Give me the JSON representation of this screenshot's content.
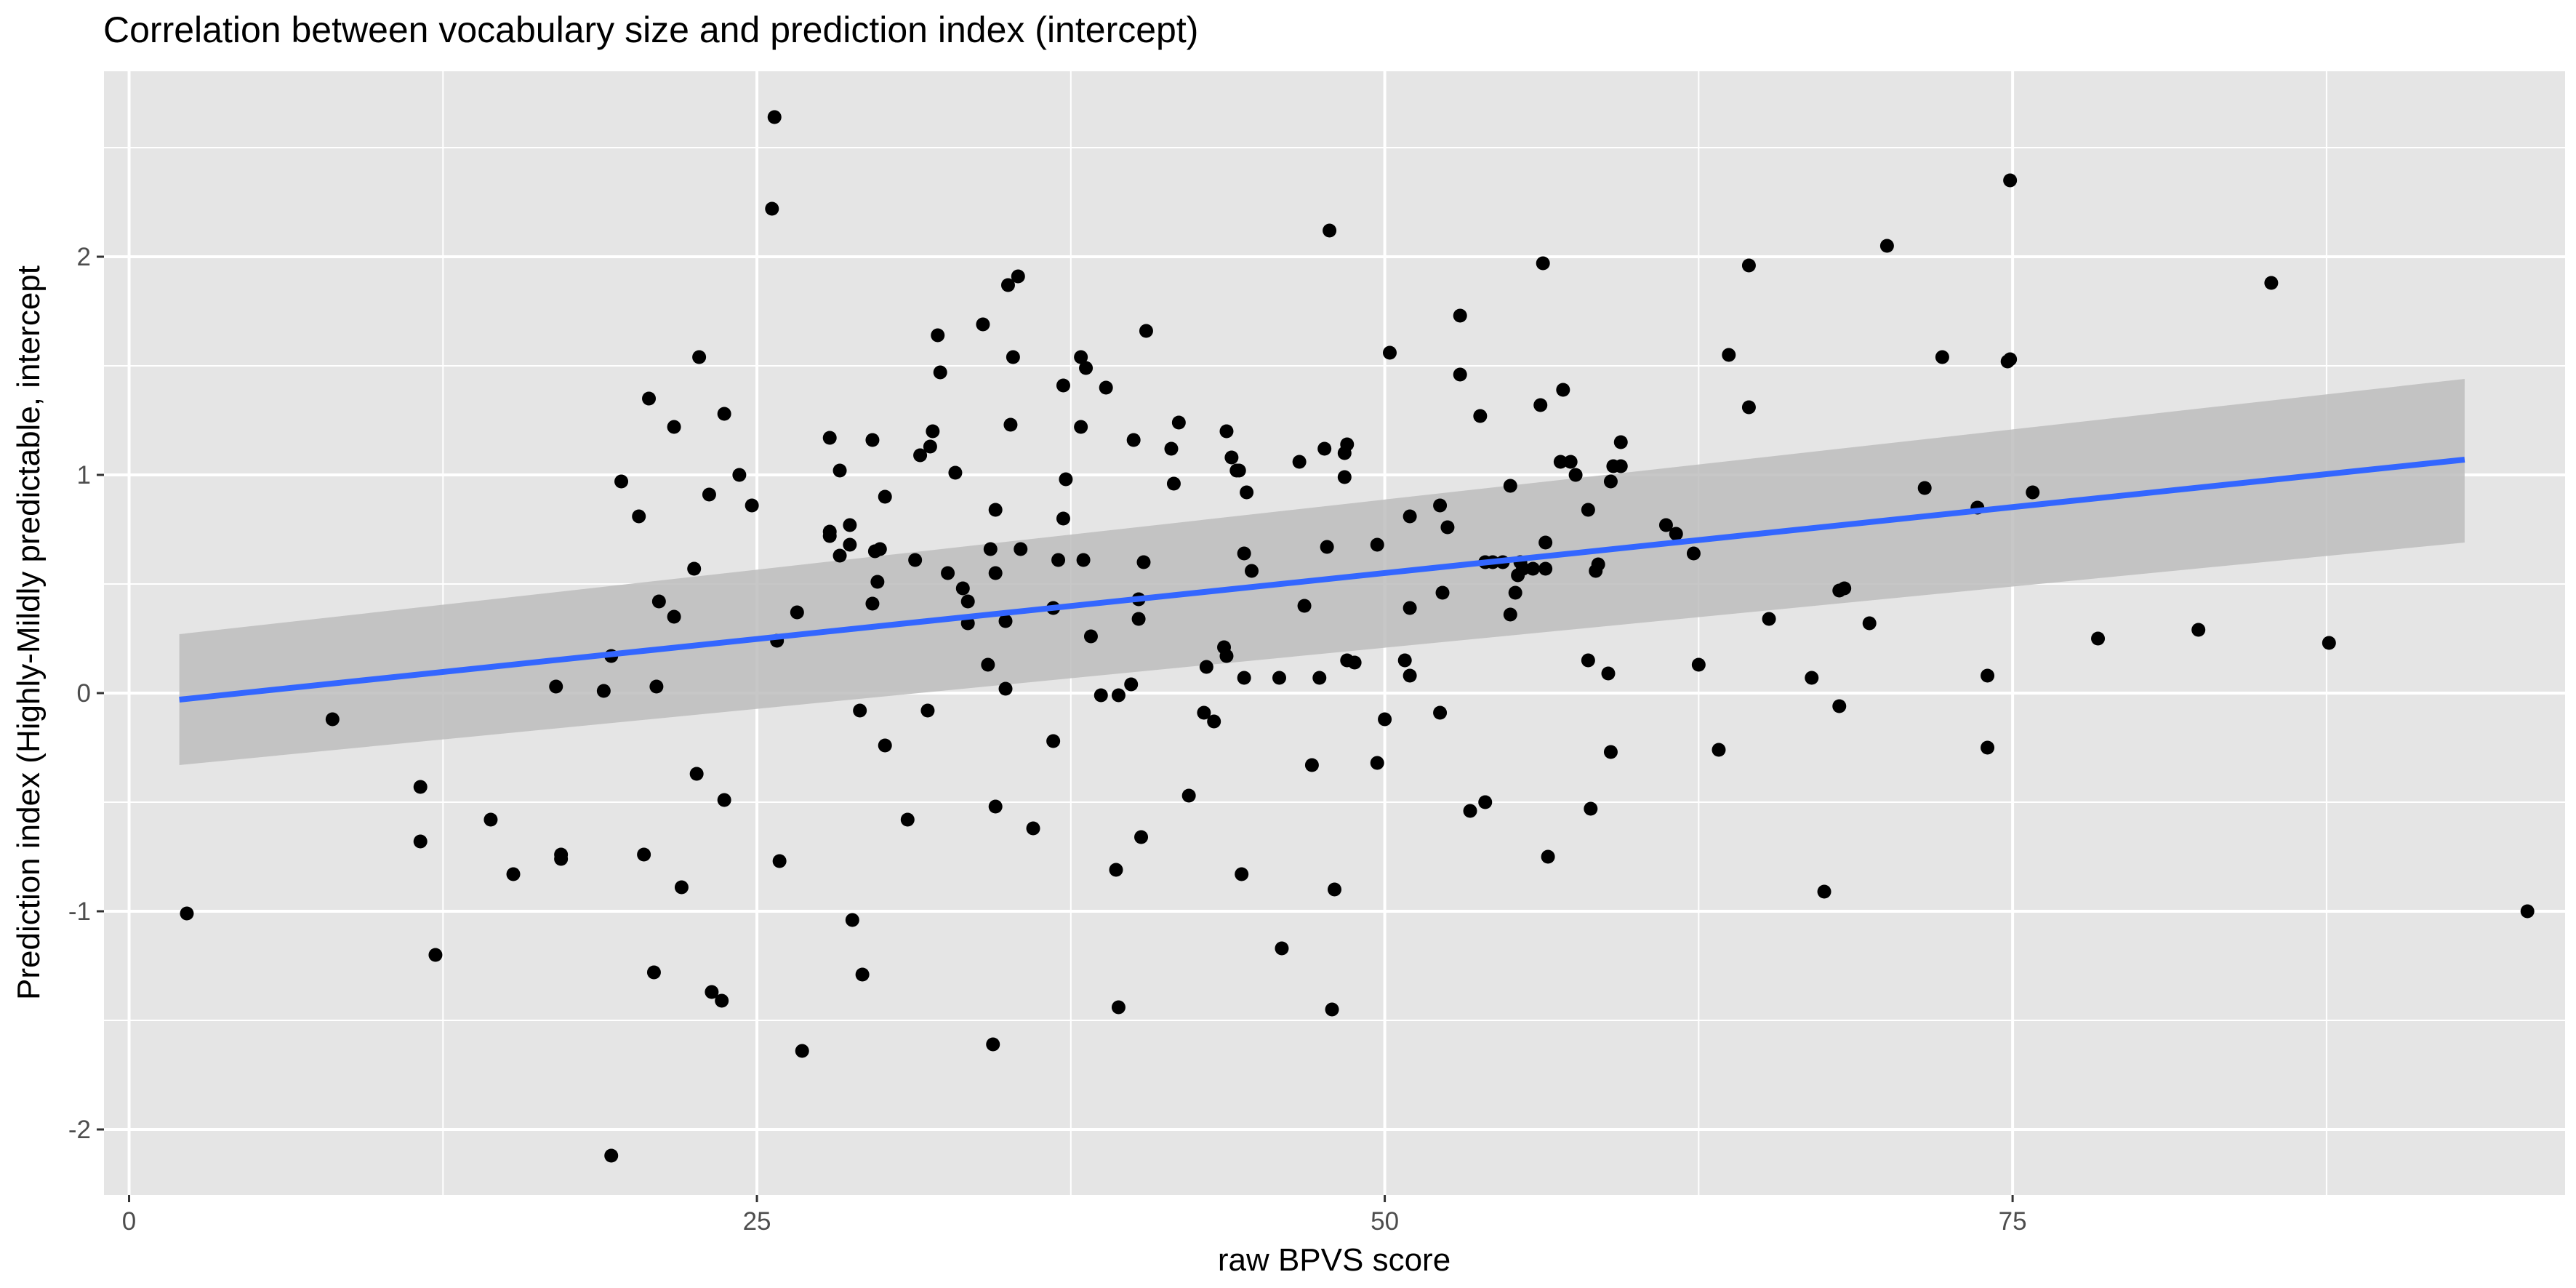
{
  "chart_data": {
    "type": "scatter",
    "title": "Correlation between vocabulary size and prediction index (intercept)",
    "xlabel": "raw BPVS score",
    "ylabel": "Prediction index (Highly-Mildly predictable, intercept",
    "xlim": [
      -1,
      97
    ],
    "ylim": [
      -2.3,
      2.85
    ],
    "x_ticks": [
      0,
      25,
      50,
      75
    ],
    "x_tick_labels": [
      "0",
      "25",
      "50",
      "75"
    ],
    "y_ticks": [
      -2,
      -1,
      0,
      1,
      2
    ],
    "y_tick_labels": [
      "-2",
      "-1",
      "0",
      "1",
      "2"
    ],
    "grid": true,
    "legend": "none",
    "colors": {
      "panel": "#e5e5e5",
      "grid": "#ffffff",
      "points": "#000000",
      "fit_line": "#3366ff",
      "confidence_band": "#bdbdbd"
    },
    "regression": {
      "x_range": [
        2,
        93
      ],
      "y_at_x_min": -0.03,
      "y_at_x_max": 1.07,
      "band_lower": [
        -0.33,
        0.69
      ],
      "band_upper": [
        0.27,
        1.44
      ]
    },
    "series": [
      {
        "points": [
          [
            2.3,
            -1.01
          ],
          [
            8.1,
            -0.12
          ],
          [
            11.6,
            -0.43
          ],
          [
            11.6,
            -0.68
          ],
          [
            12.2,
            -1.2
          ],
          [
            14.4,
            -0.58
          ],
          [
            15.3,
            -0.83
          ],
          [
            17.0,
            0.03
          ],
          [
            17.2,
            -0.74
          ],
          [
            17.2,
            -0.76
          ],
          [
            18.9,
            0.01
          ],
          [
            19.2,
            0.17
          ],
          [
            19.2,
            -2.12
          ],
          [
            19.6,
            0.97
          ],
          [
            20.3,
            0.81
          ],
          [
            20.5,
            -0.74
          ],
          [
            20.7,
            1.35
          ],
          [
            20.9,
            -1.28
          ],
          [
            21.0,
            0.03
          ],
          [
            21.1,
            0.42
          ],
          [
            21.7,
            0.35
          ],
          [
            21.7,
            1.22
          ],
          [
            22.0,
            -0.89
          ],
          [
            22.5,
            0.57
          ],
          [
            22.6,
            -0.37
          ],
          [
            22.7,
            1.54
          ],
          [
            23.1,
            0.91
          ],
          [
            23.2,
            -1.37
          ],
          [
            23.6,
            -1.41
          ],
          [
            23.7,
            1.28
          ],
          [
            23.7,
            -0.49
          ],
          [
            24.3,
            1.0
          ],
          [
            24.8,
            0.86
          ],
          [
            25.6,
            2.22
          ],
          [
            25.7,
            2.64
          ],
          [
            25.8,
            0.24
          ],
          [
            25.9,
            -0.77
          ],
          [
            26.6,
            0.37
          ],
          [
            26.8,
            -1.64
          ],
          [
            27.9,
            0.72
          ],
          [
            27.9,
            1.17
          ],
          [
            27.9,
            0.74
          ],
          [
            28.3,
            1.02
          ],
          [
            28.3,
            0.63
          ],
          [
            28.7,
            0.77
          ],
          [
            28.7,
            0.68
          ],
          [
            28.8,
            -1.04
          ],
          [
            29.1,
            -0.08
          ],
          [
            29.2,
            -1.29
          ],
          [
            29.6,
            0.41
          ],
          [
            29.6,
            1.16
          ],
          [
            29.7,
            0.65
          ],
          [
            29.8,
            0.51
          ],
          [
            29.9,
            0.66
          ],
          [
            30.1,
            0.9
          ],
          [
            30.1,
            -0.24
          ],
          [
            31.0,
            -0.58
          ],
          [
            31.3,
            0.61
          ],
          [
            31.5,
            1.09
          ],
          [
            31.8,
            -0.08
          ],
          [
            31.9,
            1.13
          ],
          [
            32.0,
            1.2
          ],
          [
            32.2,
            1.64
          ],
          [
            32.3,
            1.47
          ],
          [
            32.6,
            0.55
          ],
          [
            32.9,
            1.01
          ],
          [
            33.2,
            0.48
          ],
          [
            33.4,
            0.42
          ],
          [
            33.4,
            0.32
          ],
          [
            34.0,
            1.69
          ],
          [
            34.2,
            0.13
          ],
          [
            34.3,
            0.66
          ],
          [
            34.5,
            0.84
          ],
          [
            34.5,
            -0.52
          ],
          [
            34.5,
            0.55
          ],
          [
            34.4,
            -1.61
          ],
          [
            34.9,
            0.33
          ],
          [
            34.9,
            0.02
          ],
          [
            35.0,
            1.87
          ],
          [
            35.1,
            1.23
          ],
          [
            35.2,
            1.54
          ],
          [
            35.4,
            1.91
          ],
          [
            35.5,
            0.66
          ],
          [
            36.0,
            -0.62
          ],
          [
            36.8,
            0.39
          ],
          [
            36.8,
            -0.22
          ],
          [
            37.0,
            0.61
          ],
          [
            37.2,
            0.8
          ],
          [
            37.2,
            1.41
          ],
          [
            37.3,
            0.98
          ],
          [
            37.9,
            1.22
          ],
          [
            37.9,
            1.54
          ],
          [
            38.0,
            0.61
          ],
          [
            38.1,
            1.49
          ],
          [
            38.3,
            0.26
          ],
          [
            38.7,
            -0.01
          ],
          [
            38.9,
            1.4
          ],
          [
            39.3,
            -0.81
          ],
          [
            39.4,
            -0.01
          ],
          [
            39.4,
            -1.44
          ],
          [
            39.9,
            0.04
          ],
          [
            40.0,
            1.16
          ],
          [
            40.2,
            0.34
          ],
          [
            40.2,
            0.43
          ],
          [
            40.3,
            -0.66
          ],
          [
            40.4,
            0.6
          ],
          [
            40.5,
            1.66
          ],
          [
            41.5,
            1.12
          ],
          [
            41.6,
            0.96
          ],
          [
            41.8,
            1.24
          ],
          [
            42.2,
            -0.47
          ],
          [
            42.8,
            -0.09
          ],
          [
            42.9,
            0.12
          ],
          [
            43.2,
            -0.13
          ],
          [
            43.6,
            0.21
          ],
          [
            43.7,
            0.17
          ],
          [
            43.7,
            1.2
          ],
          [
            43.9,
            1.08
          ],
          [
            44.1,
            1.02
          ],
          [
            44.2,
            1.02
          ],
          [
            44.3,
            -0.83
          ],
          [
            44.4,
            0.64
          ],
          [
            44.4,
            0.07
          ],
          [
            44.5,
            0.92
          ],
          [
            44.7,
            0.56
          ],
          [
            45.8,
            0.07
          ],
          [
            45.9,
            -1.17
          ],
          [
            46.6,
            1.06
          ],
          [
            46.8,
            0.4
          ],
          [
            47.1,
            -0.33
          ],
          [
            47.4,
            0.07
          ],
          [
            47.6,
            1.12
          ],
          [
            47.7,
            0.67
          ],
          [
            47.9,
            -1.45
          ],
          [
            47.8,
            2.12
          ],
          [
            48.0,
            -0.9
          ],
          [
            48.4,
            1.1
          ],
          [
            48.4,
            0.99
          ],
          [
            48.5,
            1.14
          ],
          [
            48.5,
            0.15
          ],
          [
            48.8,
            0.14
          ],
          [
            49.7,
            0.68
          ],
          [
            49.7,
            -0.32
          ],
          [
            50.0,
            -0.12
          ],
          [
            50.2,
            1.56
          ],
          [
            50.8,
            0.15
          ],
          [
            51.0,
            0.08
          ],
          [
            51.0,
            0.81
          ],
          [
            51.0,
            0.39
          ],
          [
            52.2,
            -0.09
          ],
          [
            52.2,
            0.86
          ],
          [
            52.3,
            0.46
          ],
          [
            52.5,
            0.76
          ],
          [
            53.0,
            1.73
          ],
          [
            53.0,
            1.46
          ],
          [
            53.4,
            -0.54
          ],
          [
            53.8,
            1.27
          ],
          [
            54.0,
            0.6
          ],
          [
            54.0,
            -0.5
          ],
          [
            54.3,
            0.6
          ],
          [
            54.7,
            0.6
          ],
          [
            55.0,
            0.36
          ],
          [
            55.0,
            0.95
          ],
          [
            55.2,
            0.46
          ],
          [
            55.3,
            0.54
          ],
          [
            55.4,
            0.6
          ],
          [
            55.5,
            0.57
          ],
          [
            55.9,
            0.57
          ],
          [
            56.2,
            1.32
          ],
          [
            56.3,
            1.97
          ],
          [
            56.4,
            0.57
          ],
          [
            56.4,
            0.69
          ],
          [
            56.5,
            -0.75
          ],
          [
            57.0,
            1.06
          ],
          [
            57.1,
            1.39
          ],
          [
            57.4,
            1.06
          ],
          [
            57.6,
            1.0
          ],
          [
            58.1,
            0.84
          ],
          [
            58.1,
            0.15
          ],
          [
            58.2,
            -0.53
          ],
          [
            58.4,
            0.56
          ],
          [
            58.5,
            0.59
          ],
          [
            58.9,
            0.09
          ],
          [
            59.0,
            -0.27
          ],
          [
            59.0,
            0.97
          ],
          [
            59.1,
            1.04
          ],
          [
            59.4,
            1.15
          ],
          [
            59.4,
            1.04
          ],
          [
            61.2,
            0.77
          ],
          [
            61.6,
            0.73
          ],
          [
            62.3,
            0.64
          ],
          [
            62.5,
            0.13
          ],
          [
            63.3,
            -0.26
          ],
          [
            63.7,
            1.55
          ],
          [
            64.5,
            1.96
          ],
          [
            64.5,
            1.31
          ],
          [
            65.3,
            0.34
          ],
          [
            67.0,
            0.07
          ],
          [
            67.5,
            -0.91
          ],
          [
            68.1,
            -0.06
          ],
          [
            68.1,
            0.47
          ],
          [
            68.3,
            0.48
          ],
          [
            69.3,
            0.32
          ],
          [
            70.0,
            2.05
          ],
          [
            71.5,
            0.94
          ],
          [
            72.2,
            1.54
          ],
          [
            73.6,
            0.85
          ],
          [
            74.0,
            0.08
          ],
          [
            74.0,
            -0.25
          ],
          [
            74.8,
            1.52
          ],
          [
            74.9,
            1.53
          ],
          [
            74.9,
            2.35
          ],
          [
            75.8,
            0.92
          ],
          [
            78.4,
            0.25
          ],
          [
            82.4,
            0.29
          ],
          [
            85.3,
            1.88
          ],
          [
            87.6,
            0.23
          ],
          [
            95.5,
            -1.0
          ]
        ]
      }
    ]
  }
}
